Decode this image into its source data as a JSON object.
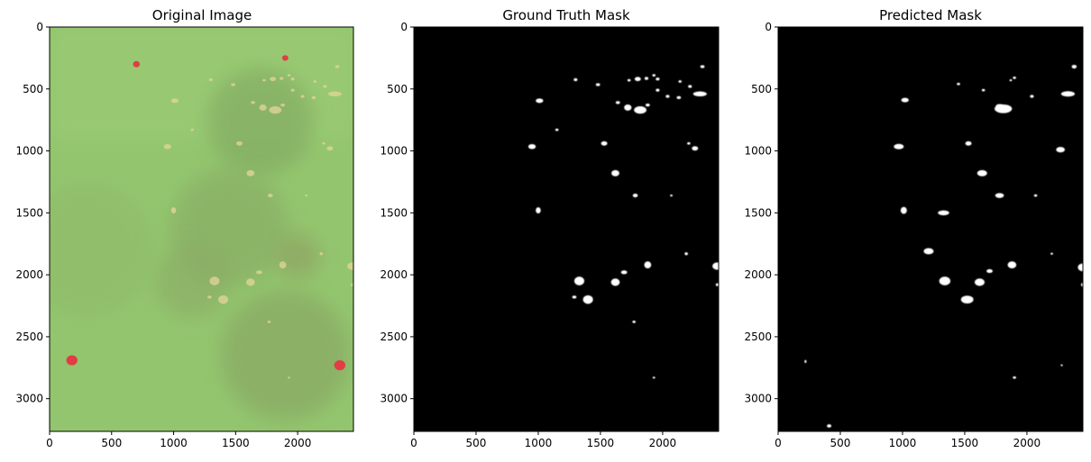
{
  "chart_data": [
    {
      "type": "image",
      "title": "Original Image",
      "xlim": [
        0,
        2450
      ],
      "ylim": [
        3264,
        0
      ],
      "xticks": [
        0,
        500,
        1000,
        1500,
        2000
      ],
      "yticks": [
        0,
        500,
        1000,
        1500,
        2000,
        2500,
        3000
      ],
      "background": "#93c56e",
      "patches": [
        {
          "kind": "dark-turf",
          "x": 1700,
          "y": 760,
          "r": 430,
          "color": "#7ea45e"
        },
        {
          "kind": "dark-turf",
          "x": 1450,
          "y": 1620,
          "r": 470,
          "color": "#86a763"
        },
        {
          "kind": "dark-turf",
          "x": 1150,
          "y": 2050,
          "r": 300,
          "color": "#8aa965"
        },
        {
          "kind": "dark-turf",
          "x": 2000,
          "y": 1850,
          "r": 180,
          "color": "#8f9a5e"
        },
        {
          "kind": "dark-turf",
          "x": 1900,
          "y": 2650,
          "r": 520,
          "color": "#86a060"
        },
        {
          "kind": "dark-turf",
          "x": 300,
          "y": 1800,
          "r": 550,
          "color": "#8fba6a"
        },
        {
          "kind": "red-marker",
          "x": 700,
          "y": 300,
          "r": 28,
          "color": "#e23d45"
        },
        {
          "kind": "red-marker",
          "x": 1900,
          "y": 250,
          "r": 25,
          "color": "#e23d45"
        },
        {
          "kind": "red-marker",
          "x": 180,
          "y": 2690,
          "r": 45,
          "color": "#e23d45"
        },
        {
          "kind": "red-marker",
          "x": 2340,
          "y": 2730,
          "r": 45,
          "color": "#e23d45"
        }
      ]
    },
    {
      "type": "image",
      "title": "Ground Truth Mask",
      "xlim": [
        0,
        2450
      ],
      "ylim": [
        3264,
        0
      ],
      "xticks": [
        0,
        500,
        1000,
        1500,
        2000
      ],
      "yticks": [
        0,
        500,
        1000,
        1500,
        2000,
        2500,
        3000
      ],
      "background": "#000000",
      "spots": [
        [
          1300,
          425,
          15,
          12
        ],
        [
          1480,
          465,
          17,
          12
        ],
        [
          1730,
          430,
          13,
          10
        ],
        [
          1800,
          420,
          25,
          17
        ],
        [
          1870,
          415,
          15,
          12
        ],
        [
          1930,
          390,
          13,
          10
        ],
        [
          1960,
          420,
          15,
          12
        ],
        [
          2140,
          440,
          13,
          10
        ],
        [
          2220,
          480,
          15,
          12
        ],
        [
          2320,
          320,
          17,
          12
        ],
        [
          2300,
          540,
          55,
          20
        ],
        [
          1010,
          595,
          30,
          18
        ],
        [
          1640,
          610,
          17,
          12
        ],
        [
          1720,
          650,
          30,
          25
        ],
        [
          1820,
          670,
          50,
          30
        ],
        [
          1880,
          630,
          17,
          12
        ],
        [
          1960,
          510,
          15,
          12
        ],
        [
          2040,
          560,
          15,
          12
        ],
        [
          2130,
          570,
          17,
          12
        ],
        [
          1150,
          830,
          13,
          10
        ],
        [
          950,
          965,
          30,
          20
        ],
        [
          1530,
          940,
          25,
          18
        ],
        [
          2210,
          940,
          13,
          10
        ],
        [
          2260,
          980,
          25,
          18
        ],
        [
          1620,
          1180,
          32,
          25
        ],
        [
          1780,
          1360,
          20,
          15
        ],
        [
          2070,
          1360,
          10,
          8
        ],
        [
          1000,
          1480,
          20,
          25
        ],
        [
          2190,
          1830,
          13,
          12
        ],
        [
          1880,
          1920,
          28,
          28
        ],
        [
          2440,
          1930,
          40,
          30
        ],
        [
          1690,
          1980,
          25,
          15
        ],
        [
          1330,
          2050,
          40,
          35
        ],
        [
          1620,
          2060,
          35,
          30
        ],
        [
          2440,
          2080,
          13,
          12
        ],
        [
          1290,
          2180,
          17,
          12
        ],
        [
          1400,
          2200,
          40,
          35
        ],
        [
          1770,
          2380,
          13,
          10
        ],
        [
          1930,
          2830,
          10,
          8
        ]
      ]
    },
    {
      "type": "image",
      "title": "Predicted Mask",
      "xlim": [
        0,
        2450
      ],
      "ylim": [
        3264,
        0
      ],
      "xticks": [
        0,
        500,
        1000,
        1500,
        2000
      ],
      "yticks": [
        0,
        500,
        1000,
        1500,
        2000,
        2500,
        3000
      ],
      "background": "#000000",
      "spots": [
        [
          2380,
          320,
          20,
          15
        ],
        [
          1450,
          460,
          13,
          10
        ],
        [
          1900,
          410,
          13,
          10
        ],
        [
          1870,
          430,
          10,
          8
        ],
        [
          1810,
          660,
          70,
          35
        ],
        [
          1780,
          640,
          30,
          18
        ],
        [
          1650,
          510,
          13,
          10
        ],
        [
          2330,
          540,
          55,
          22
        ],
        [
          2040,
          560,
          15,
          12
        ],
        [
          1020,
          590,
          30,
          18
        ],
        [
          970,
          965,
          40,
          22
        ],
        [
          1530,
          940,
          25,
          18
        ],
        [
          2270,
          990,
          35,
          22
        ],
        [
          1640,
          1180,
          40,
          25
        ],
        [
          1780,
          1360,
          35,
          20
        ],
        [
          2070,
          1360,
          13,
          10
        ],
        [
          1330,
          1500,
          45,
          20
        ],
        [
          1010,
          1480,
          25,
          28
        ],
        [
          1210,
          1810,
          40,
          25
        ],
        [
          2200,
          1830,
          10,
          8
        ],
        [
          1880,
          1920,
          35,
          28
        ],
        [
          2450,
          1940,
          40,
          32
        ],
        [
          1700,
          1970,
          25,
          15
        ],
        [
          1340,
          2050,
          45,
          35
        ],
        [
          1620,
          2060,
          40,
          30
        ],
        [
          2450,
          2080,
          15,
          15
        ],
        [
          1520,
          2200,
          50,
          32
        ],
        [
          1900,
          2830,
          13,
          10
        ],
        [
          410,
          3220,
          18,
          13
        ],
        [
          220,
          2700,
          8,
          12
        ],
        [
          2280,
          2730,
          8,
          8
        ]
      ]
    }
  ]
}
